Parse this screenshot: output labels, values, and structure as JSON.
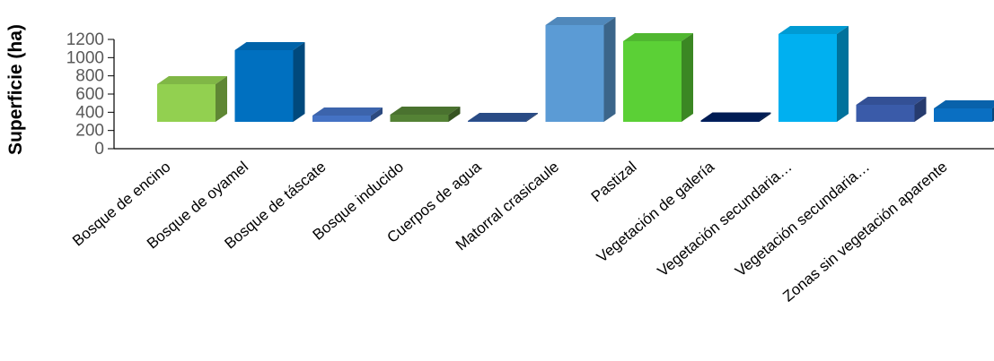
{
  "chart_data": {
    "type": "bar",
    "ylabel": "Superficie (ha)",
    "ylim": [
      0,
      1200
    ],
    "yticks": [
      "0",
      "200",
      "400",
      "600",
      "800",
      "1000",
      "1200"
    ],
    "categories": [
      "Bosque de encino",
      "Bosque de oyamel",
      "Bosque de táscate",
      "Bosque inducido",
      "Cuerpos de agua",
      "Matorral crasicaule",
      "Pastizal",
      "Vegetación de galería",
      "Vegetación secundaria…",
      "Vegetación secundaria…",
      "Zonas sin vegetación aparente"
    ],
    "values": [
      420,
      800,
      70,
      80,
      10,
      1080,
      900,
      15,
      980,
      190,
      150
    ],
    "colors": [
      "#92d050",
      "#0070c0",
      "#4472c4",
      "#548235",
      "#2f5597",
      "#5b9bd5",
      "#5bd036",
      "#002060",
      "#00b0f0",
      "#3a5ba9",
      "#0a6fc2"
    ],
    "grid": false,
    "legend": "none"
  }
}
